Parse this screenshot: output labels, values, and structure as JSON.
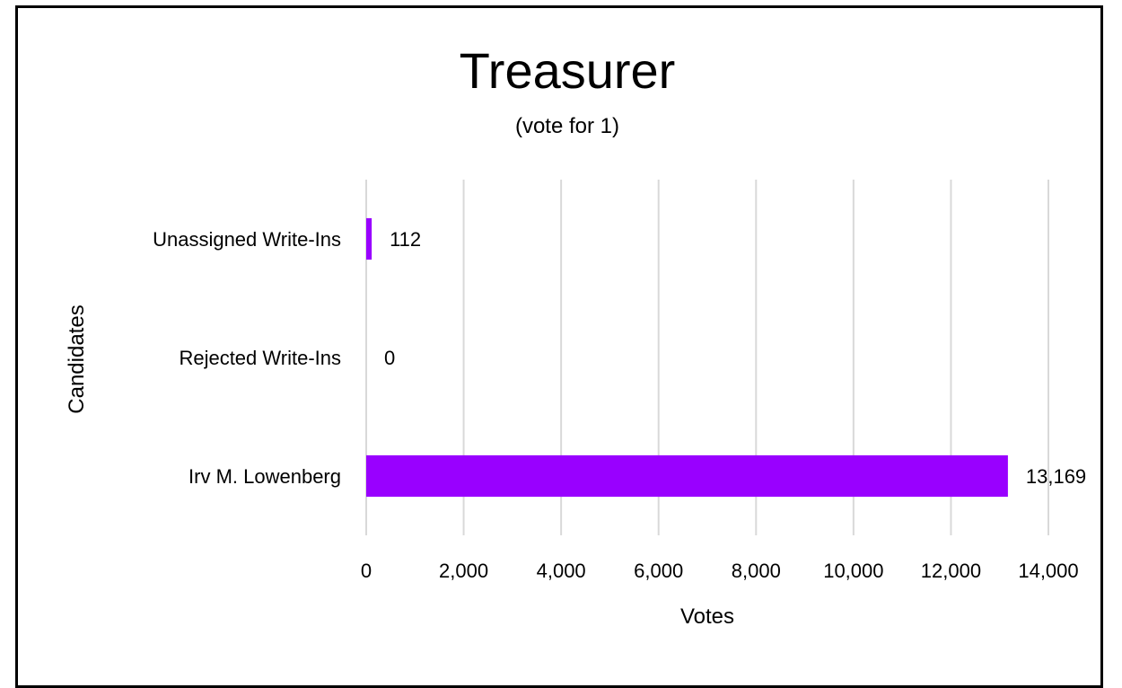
{
  "chart_data": {
    "type": "bar",
    "orientation": "horizontal",
    "title": "Treasurer",
    "subtitle": "(vote for 1)",
    "xlabel": "Votes",
    "ylabel": "Candidates",
    "categories": [
      "Irv M. Lowenberg",
      "Rejected Write-Ins",
      "Unassigned Write-Ins"
    ],
    "values": [
      13169,
      0,
      112
    ],
    "data_labels": [
      "13,169",
      "0",
      "112"
    ],
    "xlim": [
      0,
      14000
    ],
    "x_ticks": [
      0,
      2000,
      4000,
      6000,
      8000,
      10000,
      12000,
      14000
    ],
    "x_tick_labels": [
      "0",
      "2,000",
      "4,000",
      "6,000",
      "8,000",
      "10,000",
      "12,000",
      "14,000"
    ],
    "grid": "vertical",
    "legend": "none",
    "bar_color": "#9900ff",
    "grid_color": "#d9d9d9"
  }
}
